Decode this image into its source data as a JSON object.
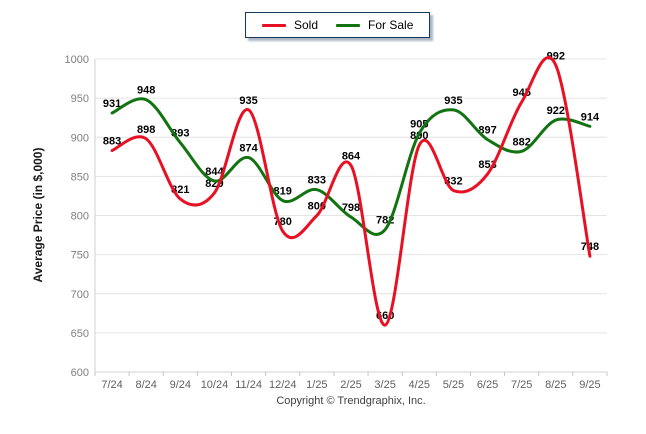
{
  "chart_data": {
    "type": "line",
    "curve": "spline",
    "title": "",
    "xlabel": "",
    "ylabel": "Average Price (in $,000)",
    "ylim": [
      600,
      1000
    ],
    "ytick_step": 50,
    "grid": true,
    "legend_position": "top-center",
    "categories": [
      "7/24",
      "8/24",
      "9/24",
      "10/24",
      "11/24",
      "12/24",
      "1/25",
      "2/25",
      "3/25",
      "4/25",
      "5/25",
      "6/25",
      "7/25",
      "8/25",
      "9/25"
    ],
    "series": [
      {
        "name": "Sold",
        "color": "#e81123",
        "values": [
          883,
          898,
          821,
          829,
          935,
          780,
          800,
          864,
          660,
          890,
          832,
          853,
          945,
          992,
          748
        ]
      },
      {
        "name": "For Sale",
        "color": "#117411",
        "values": [
          931,
          948,
          893,
          844,
          874,
          819,
          833,
          798,
          782,
          905,
          935,
          897,
          882,
          922,
          914
        ]
      }
    ],
    "axis_colors": {
      "gridline": "#e4e4e4",
      "axis_line": "#d0d0d0",
      "tick_mark": "#c4c4c4",
      "y_tick_label": "#7f7f7f",
      "x_tick_label": "#5f5f5f",
      "data_label": "#000000"
    }
  },
  "footer": {
    "copyright": "Copyright © Trendgraphix, Inc."
  }
}
